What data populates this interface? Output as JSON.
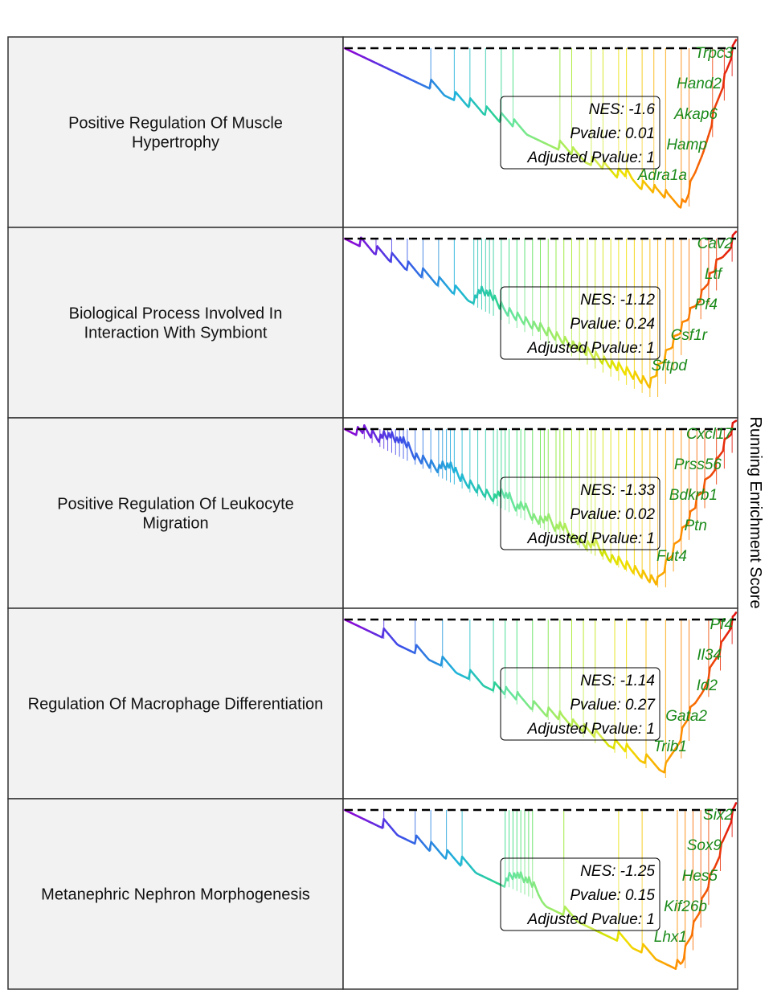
{
  "figure": {
    "ylabel": "Running Enrichment Score"
  },
  "colors": {
    "row_label_bg": "#f2f2f2",
    "border": "#333333",
    "baseline": "#000000",
    "gene_label": "#1a8a1a",
    "gradient_by_rank": [
      "#9400d3",
      "#3b4ee8",
      "#1fb5d9",
      "#33dd7a",
      "#9be81a",
      "#f0e000",
      "#ff8c00",
      "#e01010"
    ]
  },
  "chart_data": [
    {
      "type": "line",
      "title": "Positive Regulation Of Muscle Hypertrophy",
      "title_lines": [
        "Positive Regulation Of Muscle",
        "Hypertrophy"
      ],
      "stats": {
        "nes": "NES: -1.6",
        "pvalue": "Pvalue: 0.01",
        "adj_pvalue": "Adjusted Pvalue: 1"
      },
      "genes": [
        "Trpc3",
        "Hand2",
        "Akap6",
        "Hamp",
        "Adra1a"
      ],
      "trend": {
        "start": 0.0,
        "min": -1.0,
        "min_at": 0.87,
        "end": 0.0
      },
      "hits": [
        0.22,
        0.28,
        0.32,
        0.36,
        0.4,
        0.43,
        0.55,
        0.58,
        0.63,
        0.66,
        0.7,
        0.72,
        0.76,
        0.79,
        0.82,
        0.86,
        0.88,
        0.94,
        0.97,
        0.99
      ]
    },
    {
      "type": "line",
      "title": "Biological Process Involved In Interaction With Symbiont",
      "title_lines": [
        "Biological Process Involved In",
        "Interaction With Symbiont"
      ],
      "stats": {
        "nes": "NES: -1.12",
        "pvalue": "Pvalue: 0.24",
        "adj_pvalue": "Adjusted Pvalue: 1"
      },
      "genes": [
        "Cav2",
        "Ltf",
        "Pf4",
        "Csf1r",
        "Sftpd"
      ],
      "trend": {
        "start": 0.0,
        "min": -0.95,
        "min_at": 0.78,
        "end": 0.0
      },
      "hits": [
        0.04,
        0.08,
        0.12,
        0.16,
        0.2,
        0.24,
        0.28,
        0.33,
        0.34,
        0.35,
        0.36,
        0.37,
        0.38,
        0.4,
        0.42,
        0.44,
        0.46,
        0.48,
        0.5,
        0.52,
        0.54,
        0.56,
        0.58,
        0.6,
        0.62,
        0.64,
        0.66,
        0.68,
        0.7,
        0.72,
        0.74,
        0.76,
        0.78,
        0.8,
        0.82,
        0.84,
        0.86,
        0.88,
        0.91,
        0.93,
        0.95,
        0.99
      ]
    },
    {
      "type": "line",
      "title": "Positive Regulation Of Leukocyte Migration",
      "title_lines": [
        "Positive Regulation Of Leukocyte",
        "Migration"
      ],
      "stats": {
        "nes": "NES: -1.33",
        "pvalue": "Pvalue: 0.02",
        "adj_pvalue": "Adjusted Pvalue: 1"
      },
      "genes": [
        "Cxcl17",
        "Prss56",
        "Bdkrb1",
        "Ptn",
        "Fut4"
      ],
      "trend": {
        "start": 0.0,
        "min": -1.0,
        "min_at": 0.8,
        "end": 0.0
      },
      "hits": [
        0.03,
        0.05,
        0.07,
        0.09,
        0.1,
        0.11,
        0.12,
        0.13,
        0.14,
        0.15,
        0.16,
        0.18,
        0.2,
        0.22,
        0.24,
        0.25,
        0.26,
        0.27,
        0.28,
        0.3,
        0.32,
        0.34,
        0.36,
        0.38,
        0.39,
        0.4,
        0.41,
        0.42,
        0.44,
        0.45,
        0.46,
        0.48,
        0.5,
        0.51,
        0.52,
        0.54,
        0.55,
        0.56,
        0.58,
        0.6,
        0.62,
        0.63,
        0.64,
        0.66,
        0.68,
        0.7,
        0.72,
        0.74,
        0.76,
        0.78,
        0.8,
        0.82,
        0.84,
        0.86,
        0.88,
        0.9,
        0.92,
        0.95,
        0.97,
        0.99
      ]
    },
    {
      "type": "line",
      "title": "Regulation Of Macrophage Differentiation",
      "title_lines": [
        "Regulation Of Macrophage Differentiation"
      ],
      "stats": {
        "nes": "NES: -1.14",
        "pvalue": "Pvalue: 0.27",
        "adj_pvalue": "Adjusted Pvalue: 1"
      },
      "genes": [
        "Pf4",
        "Il34",
        "Id2",
        "Gata2",
        "Trib1"
      ],
      "trend": {
        "start": 0.0,
        "min": -0.95,
        "min_at": 0.82,
        "end": 0.0
      },
      "hits": [
        0.1,
        0.18,
        0.25,
        0.32,
        0.38,
        0.41,
        0.44,
        0.48,
        0.52,
        0.55,
        0.58,
        0.61,
        0.64,
        0.69,
        0.72,
        0.77,
        0.82,
        0.86,
        0.88,
        0.93,
        0.96,
        0.99
      ]
    },
    {
      "type": "line",
      "title": "Metanephric Nephron Morphogenesis",
      "title_lines": [
        "Metanephric Nephron Morphogenesis"
      ],
      "stats": {
        "nes": "NES: -1.25",
        "pvalue": "Pvalue: 0.15",
        "adj_pvalue": "Adjusted Pvalue: 1"
      },
      "genes": [
        "Six2",
        "Sox9",
        "Hes5",
        "Kif26b",
        "Lhx1"
      ],
      "trend": {
        "start": 0.0,
        "min": -1.0,
        "min_at": 0.86,
        "end": 0.0
      },
      "hits": [
        0.1,
        0.18,
        0.22,
        0.26,
        0.3,
        0.41,
        0.42,
        0.43,
        0.44,
        0.45,
        0.46,
        0.47,
        0.48,
        0.56,
        0.7,
        0.76,
        0.85,
        0.87,
        0.89,
        0.91,
        0.93,
        0.96,
        0.99
      ]
    }
  ]
}
